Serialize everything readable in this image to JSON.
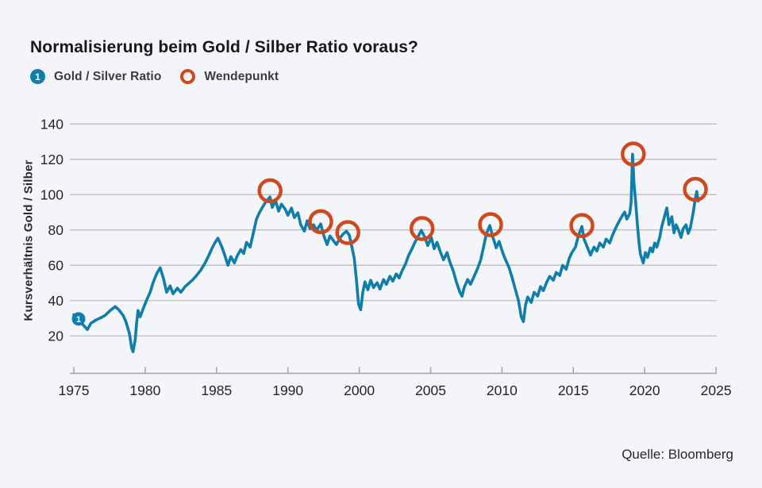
{
  "header": {
    "title": "Normalisierung beim Gold / Silber Ratio voraus?"
  },
  "legend": {
    "series_marker": "1",
    "series_label": "Gold / Silver Ratio",
    "turning_label": "Wendepunkt"
  },
  "footer": {
    "source": "Quelle: Bloomberg"
  },
  "colors": {
    "background": "#f4f5f8",
    "series_teal": "#107ea9",
    "turning_orange": "#d0481e",
    "gridline": "#b7b8bb",
    "axis": "#a2a4a8",
    "text": "#232528",
    "marker_text": "#ffffff"
  },
  "chart_data": {
    "type": "line",
    "title": "Normalisierung beim Gold / Silber Ratio voraus?",
    "xlabel": "",
    "ylabel": "Kursverhältnis Gold / Silber",
    "source": "Quelle: Bloomberg",
    "x_tick_labels": [
      "1975",
      "1980",
      "1985",
      "1990",
      "2000",
      "2005",
      "2010",
      "2015",
      "2020",
      "2025"
    ],
    "y_ticks": [
      20,
      40,
      60,
      80,
      100,
      120,
      140
    ],
    "ylim": [
      0,
      148
    ],
    "grid": "horizontal",
    "legend_position": "top-left",
    "note": "x coordinates are in axis-tick units: 0 = first tick (1975), 9 = last tick (2025), evenly spaced as printed on the chart (the original chart omits a 1995 label).",
    "series": [
      {
        "name": "Gold / Silver Ratio",
        "marker_label": "1",
        "start_marker": [
          0.067,
          29.6
        ],
        "points": [
          [
            0.0,
            32
          ],
          [
            0.07,
            29.4
          ],
          [
            0.12,
            26.7
          ],
          [
            0.19,
            23.6
          ],
          [
            0.24,
            27.2
          ],
          [
            0.31,
            29
          ],
          [
            0.38,
            30.3
          ],
          [
            0.44,
            31.7
          ],
          [
            0.51,
            34.4
          ],
          [
            0.58,
            36.6
          ],
          [
            0.63,
            34.8
          ],
          [
            0.69,
            31.7
          ],
          [
            0.73,
            28.1
          ],
          [
            0.78,
            21.3
          ],
          [
            0.81,
            13.3
          ],
          [
            0.83,
            11
          ],
          [
            0.86,
            17.8
          ],
          [
            0.88,
            27.2
          ],
          [
            0.9,
            34.4
          ],
          [
            0.93,
            30.8
          ],
          [
            0.98,
            36.2
          ],
          [
            1.02,
            40.2
          ],
          [
            1.07,
            44.7
          ],
          [
            1.11,
            50.1
          ],
          [
            1.16,
            55.1
          ],
          [
            1.21,
            58.6
          ],
          [
            1.26,
            51.9
          ],
          [
            1.3,
            44.7
          ],
          [
            1.35,
            48.3
          ],
          [
            1.39,
            43.8
          ],
          [
            1.45,
            47
          ],
          [
            1.5,
            44.7
          ],
          [
            1.56,
            47.9
          ],
          [
            1.61,
            49.7
          ],
          [
            1.67,
            51.9
          ],
          [
            1.72,
            54.2
          ],
          [
            1.78,
            57.3
          ],
          [
            1.84,
            61.3
          ],
          [
            1.89,
            65.4
          ],
          [
            1.94,
            69.9
          ],
          [
            1.98,
            73
          ],
          [
            2.02,
            75.3
          ],
          [
            2.07,
            70.8
          ],
          [
            2.11,
            66.3
          ],
          [
            2.16,
            60
          ],
          [
            2.2,
            64.9
          ],
          [
            2.25,
            61.3
          ],
          [
            2.29,
            65.4
          ],
          [
            2.34,
            68.9
          ],
          [
            2.38,
            66.7
          ],
          [
            2.42,
            73
          ],
          [
            2.47,
            70.3
          ],
          [
            2.51,
            77.1
          ],
          [
            2.56,
            86.1
          ],
          [
            2.6,
            89.7
          ],
          [
            2.65,
            93.3
          ],
          [
            2.69,
            95.9
          ],
          [
            2.75,
            98.7
          ],
          [
            2.78,
            92.8
          ],
          [
            2.83,
            96.4
          ],
          [
            2.87,
            90.6
          ],
          [
            2.91,
            94.6
          ],
          [
            2.96,
            91.9
          ],
          [
            3.0,
            88.3
          ],
          [
            3.05,
            92.4
          ],
          [
            3.09,
            87
          ],
          [
            3.14,
            89.7
          ],
          [
            3.18,
            82.9
          ],
          [
            3.23,
            79.3
          ],
          [
            3.27,
            85.2
          ],
          [
            3.31,
            80.7
          ],
          [
            3.36,
            82.9
          ],
          [
            3.4,
            79.8
          ],
          [
            3.46,
            83.4
          ],
          [
            3.5,
            77.1
          ],
          [
            3.55,
            71.7
          ],
          [
            3.59,
            76.6
          ],
          [
            3.64,
            73.9
          ],
          [
            3.68,
            71.7
          ],
          [
            3.73,
            75.3
          ],
          [
            3.77,
            77.5
          ],
          [
            3.82,
            79.3
          ],
          [
            3.86,
            77.1
          ],
          [
            3.89,
            71.7
          ],
          [
            3.93,
            64
          ],
          [
            3.96,
            51.9
          ],
          [
            3.99,
            38
          ],
          [
            4.02,
            34.8
          ],
          [
            4.05,
            44.7
          ],
          [
            4.08,
            50.6
          ],
          [
            4.12,
            46.1
          ],
          [
            4.16,
            51.5
          ],
          [
            4.2,
            47.4
          ],
          [
            4.25,
            50.1
          ],
          [
            4.29,
            46.5
          ],
          [
            4.34,
            51.9
          ],
          [
            4.38,
            49.2
          ],
          [
            4.43,
            53.7
          ],
          [
            4.47,
            51
          ],
          [
            4.52,
            55.1
          ],
          [
            4.56,
            52.8
          ],
          [
            4.6,
            56.8
          ],
          [
            4.65,
            60.9
          ],
          [
            4.69,
            65.4
          ],
          [
            4.74,
            69.4
          ],
          [
            4.78,
            73
          ],
          [
            4.83,
            76.6
          ],
          [
            4.87,
            79.8
          ],
          [
            4.92,
            75.7
          ],
          [
            4.96,
            71.2
          ],
          [
            5.01,
            75.7
          ],
          [
            5.05,
            69.4
          ],
          [
            5.09,
            73
          ],
          [
            5.14,
            67.2
          ],
          [
            5.18,
            63.1
          ],
          [
            5.23,
            67.2
          ],
          [
            5.27,
            61.8
          ],
          [
            5.32,
            56.4
          ],
          [
            5.36,
            50.6
          ],
          [
            5.41,
            44.7
          ],
          [
            5.44,
            42.5
          ],
          [
            5.47,
            47.4
          ],
          [
            5.52,
            51.9
          ],
          [
            5.56,
            49.2
          ],
          [
            5.61,
            53.7
          ],
          [
            5.65,
            57.3
          ],
          [
            5.7,
            62.7
          ],
          [
            5.74,
            69.9
          ],
          [
            5.78,
            77.5
          ],
          [
            5.83,
            82.5
          ],
          [
            5.87,
            76.2
          ],
          [
            5.92,
            69.9
          ],
          [
            5.96,
            73.5
          ],
          [
            6.01,
            67.2
          ],
          [
            6.05,
            63.1
          ],
          [
            6.1,
            58.6
          ],
          [
            6.14,
            53.3
          ],
          [
            6.18,
            47.4
          ],
          [
            6.23,
            40.2
          ],
          [
            6.27,
            30.8
          ],
          [
            6.3,
            28.1
          ],
          [
            6.33,
            37.5
          ],
          [
            6.36,
            42
          ],
          [
            6.41,
            38.9
          ],
          [
            6.45,
            44.7
          ],
          [
            6.5,
            42.5
          ],
          [
            6.54,
            47.9
          ],
          [
            6.58,
            45.6
          ],
          [
            6.63,
            50.6
          ],
          [
            6.67,
            53.7
          ],
          [
            6.72,
            51.5
          ],
          [
            6.76,
            55.9
          ],
          [
            6.81,
            54.2
          ],
          [
            6.85,
            60
          ],
          [
            6.9,
            57.7
          ],
          [
            6.94,
            63.6
          ],
          [
            6.98,
            67.2
          ],
          [
            7.03,
            70.3
          ],
          [
            7.07,
            76.6
          ],
          [
            7.12,
            82
          ],
          [
            7.15,
            74.8
          ],
          [
            7.2,
            69.9
          ],
          [
            7.24,
            65.8
          ],
          [
            7.29,
            70.3
          ],
          [
            7.33,
            68.1
          ],
          [
            7.37,
            72.6
          ],
          [
            7.42,
            70.3
          ],
          [
            7.46,
            74.8
          ],
          [
            7.51,
            72.6
          ],
          [
            7.55,
            77.1
          ],
          [
            7.6,
            81.6
          ],
          [
            7.64,
            84.7
          ],
          [
            7.69,
            88.3
          ],
          [
            7.72,
            90.1
          ],
          [
            7.75,
            86.1
          ],
          [
            7.79,
            89.2
          ],
          [
            7.81,
            95.5
          ],
          [
            7.83,
            122.9
          ],
          [
            7.85,
            106.7
          ],
          [
            7.88,
            92.4
          ],
          [
            7.9,
            82
          ],
          [
            7.92,
            73
          ],
          [
            7.94,
            66.3
          ],
          [
            7.98,
            61.3
          ],
          [
            8.01,
            67.2
          ],
          [
            8.04,
            64.5
          ],
          [
            8.08,
            69.9
          ],
          [
            8.11,
            67.6
          ],
          [
            8.14,
            72.6
          ],
          [
            8.17,
            70.3
          ],
          [
            8.21,
            75.7
          ],
          [
            8.24,
            82
          ],
          [
            8.28,
            88
          ],
          [
            8.31,
            92.5
          ],
          [
            8.34,
            83
          ],
          [
            8.38,
            87.5
          ],
          [
            8.41,
            78.4
          ],
          [
            8.44,
            82.9
          ],
          [
            8.48,
            79.3
          ],
          [
            8.51,
            75.7
          ],
          [
            8.54,
            80.7
          ],
          [
            8.58,
            82.9
          ],
          [
            8.61,
            78
          ],
          [
            8.64,
            81.1
          ],
          [
            8.68,
            89.7
          ],
          [
            8.71,
            97.8
          ],
          [
            8.73,
            101.8
          ],
          [
            8.75,
            96.4
          ]
        ]
      }
    ],
    "turning_points": {
      "name": "Wendepunkt",
      "points": [
        [
          2.75,
          102.2
        ],
        [
          3.46,
          84.7
        ],
        [
          3.84,
          78.5
        ],
        [
          4.88,
          80.8
        ],
        [
          5.84,
          83
        ],
        [
          7.12,
          82.5
        ],
        [
          7.84,
          123
        ],
        [
          8.71,
          103
        ]
      ]
    }
  }
}
